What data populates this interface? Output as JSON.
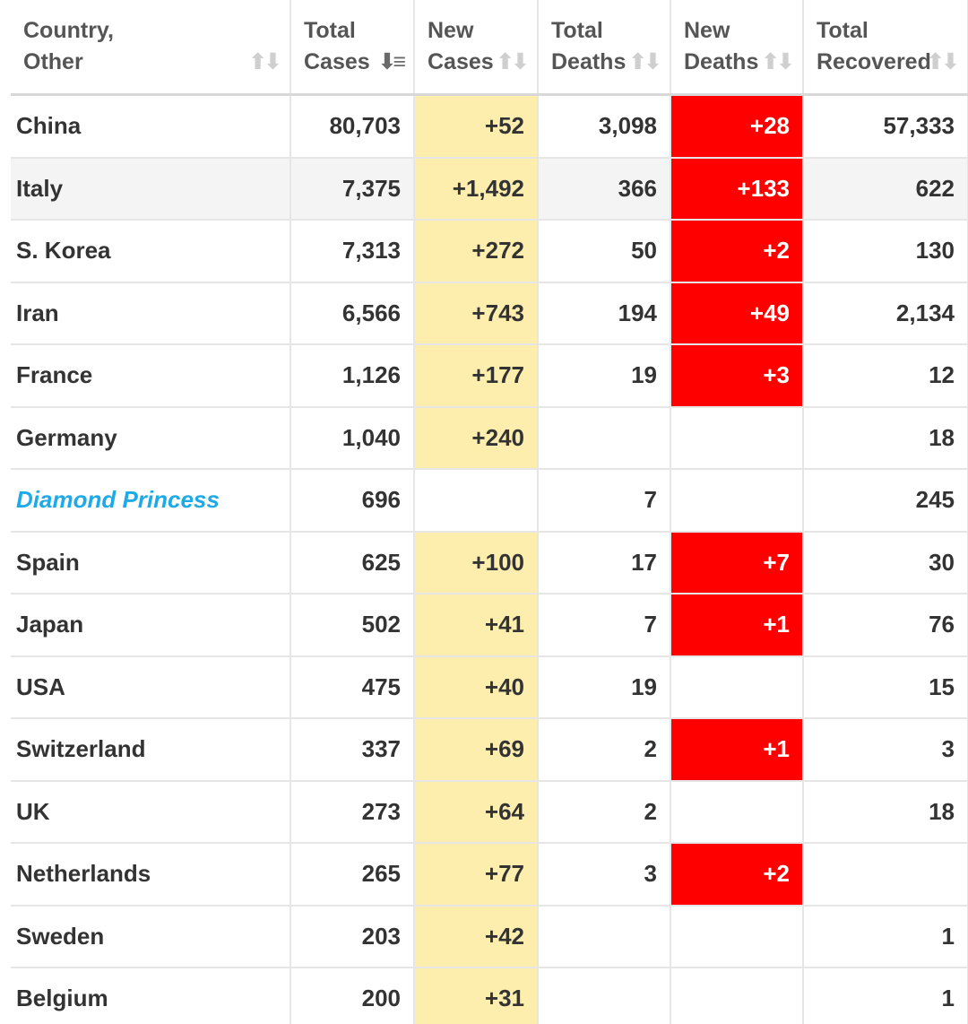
{
  "table": {
    "headers": [
      {
        "line1": "Country,",
        "line2": "Other",
        "sort": "⬆⬇"
      },
      {
        "line1": "Total",
        "line2": "Cases",
        "sort": "⬇≡"
      },
      {
        "line1": "New",
        "line2": "Cases",
        "sort": "⬆⬇"
      },
      {
        "line1": "Total",
        "line2": "Deaths",
        "sort": "⬆⬇"
      },
      {
        "line1": "New",
        "line2": "Deaths",
        "sort": "⬆⬇"
      },
      {
        "line1": "Total",
        "line2": "Recovered",
        "sort": "⬆⬇"
      }
    ],
    "rows": [
      {
        "country": "China",
        "total_cases": "80,703",
        "new_cases": "+52",
        "total_deaths": "3,098",
        "new_deaths": "+28",
        "total_recovered": "57,333"
      },
      {
        "country": "Italy",
        "total_cases": "7,375",
        "new_cases": "+1,492",
        "total_deaths": "366",
        "new_deaths": "+133",
        "total_recovered": "622"
      },
      {
        "country": "S. Korea",
        "total_cases": "7,313",
        "new_cases": "+272",
        "total_deaths": "50",
        "new_deaths": "+2",
        "total_recovered": "130"
      },
      {
        "country": "Iran",
        "total_cases": "6,566",
        "new_cases": "+743",
        "total_deaths": "194",
        "new_deaths": "+49",
        "total_recovered": "2,134"
      },
      {
        "country": "France",
        "total_cases": "1,126",
        "new_cases": "+177",
        "total_deaths": "19",
        "new_deaths": "+3",
        "total_recovered": "12"
      },
      {
        "country": "Germany",
        "total_cases": "1,040",
        "new_cases": "+240",
        "total_deaths": "",
        "new_deaths": "",
        "total_recovered": "18"
      },
      {
        "country": "Diamond Princess",
        "total_cases": "696",
        "new_cases": "",
        "total_deaths": "7",
        "new_deaths": "",
        "total_recovered": "245"
      },
      {
        "country": "Spain",
        "total_cases": "625",
        "new_cases": "+100",
        "total_deaths": "17",
        "new_deaths": "+7",
        "total_recovered": "30"
      },
      {
        "country": "Japan",
        "total_cases": "502",
        "new_cases": "+41",
        "total_deaths": "7",
        "new_deaths": "+1",
        "total_recovered": "76"
      },
      {
        "country": "USA",
        "total_cases": "475",
        "new_cases": "+40",
        "total_deaths": "19",
        "new_deaths": "",
        "total_recovered": "15"
      },
      {
        "country": "Switzerland",
        "total_cases": "337",
        "new_cases": "+69",
        "total_deaths": "2",
        "new_deaths": "+1",
        "total_recovered": "3"
      },
      {
        "country": "UK",
        "total_cases": "273",
        "new_cases": "+64",
        "total_deaths": "2",
        "new_deaths": "",
        "total_recovered": "18"
      },
      {
        "country": "Netherlands",
        "total_cases": "265",
        "new_cases": "+77",
        "total_deaths": "3",
        "new_deaths": "+2",
        "total_recovered": ""
      },
      {
        "country": "Sweden",
        "total_cases": "203",
        "new_cases": "+42",
        "total_deaths": "",
        "new_deaths": "",
        "total_recovered": "1"
      },
      {
        "country": "Belgium",
        "total_cases": "200",
        "new_cases": "+31",
        "total_deaths": "",
        "new_deaths": "",
        "total_recovered": "1"
      }
    ]
  },
  "colors": {
    "new_cases_highlight": "#fdeeae",
    "new_deaths_highlight": "#ff0000",
    "link_text": "#1eaae7",
    "header_text": "#555555",
    "cell_text": "#333333"
  }
}
